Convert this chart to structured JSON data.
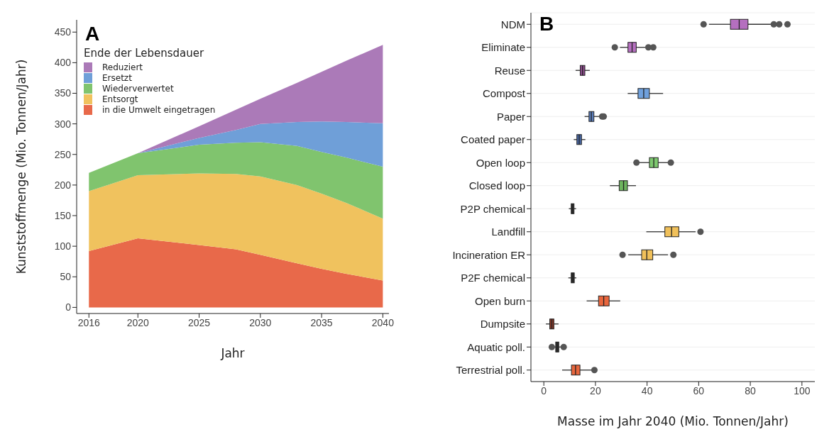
{
  "chart_data": [
    {
      "type": "area",
      "stacked": true,
      "annotations": [
        "A"
      ],
      "xlabel": "Jahr",
      "ylabel": "Kunststoffmenge (Mio. Tonnen/Jahr)",
      "legend_title": "Ende der Lebensdauer",
      "legend": "top left",
      "x": [
        2016,
        2020,
        2025,
        2028,
        2030,
        2033,
        2035,
        2037,
        2040
      ],
      "series": [
        {
          "name": "in die Umwelt eingetragen",
          "color": "#e8694a",
          "values": [
            92,
            113,
            102,
            95,
            86,
            72,
            63,
            55,
            44
          ]
        },
        {
          "name": "Entsorgt",
          "color": "#f0c25e",
          "values": [
            98,
            103,
            117,
            123,
            128,
            128,
            123,
            116,
            101
          ]
        },
        {
          "name": "Wiederverwertet",
          "color": "#80c46e",
          "values": [
            30,
            36,
            47,
            51,
            56,
            64,
            68,
            74,
            85
          ]
        },
        {
          "name": "Ersetzt",
          "color": "#6f9fd8",
          "values": [
            0,
            0,
            11,
            21,
            30,
            39,
            50,
            58,
            71
          ]
        },
        {
          "name": "Reduziert",
          "color": "#ab7ab8",
          "values": [
            0,
            0,
            19,
            33,
            41,
            64,
            81,
            100,
            128
          ]
        }
      ],
      "xlim": [
        2015,
        2040.5
      ],
      "xticks": [
        2016,
        2020,
        2025,
        2030,
        2035,
        2040
      ],
      "ylim": [
        -10,
        470
      ],
      "yticks": [
        0,
        50,
        100,
        150,
        200,
        250,
        300,
        350,
        400,
        450
      ]
    },
    {
      "type": "box",
      "orientation": "horizontal",
      "annotations": [
        "B"
      ],
      "xlabel": "Masse im Jahr 2040 (Mio. Tonnen/Jahr)",
      "grid": "y",
      "categories": [
        "NDM",
        "Eliminate",
        "Reuse",
        "Compost",
        "Paper",
        "Coated paper",
        "Open loop",
        "Closed loop",
        "P2P chemical",
        "Landfill",
        "Incineration ER",
        "P2F chemical",
        "Open burn",
        "Dumpsite",
        "Aquatic poll.",
        "Terrestrial poll."
      ],
      "boxes": [
        {
          "low": 64,
          "q1": 72.3,
          "median": 75.7,
          "q3": 79.1,
          "high": 88.3,
          "outliers": [
            61.9,
            89.1,
            91.2,
            94.4
          ]
        },
        {
          "low": 29.5,
          "q1": 32.6,
          "median": 34.2,
          "q3": 35.8,
          "high": 39.3,
          "outliers": [
            27.5,
            40.5,
            42.4
          ]
        },
        {
          "low": 12.3,
          "q1": 14.1,
          "median": 15,
          "q3": 15.9,
          "high": 17.8
        },
        {
          "low": 32.5,
          "q1": 36.5,
          "median": 38.7,
          "q3": 40.9,
          "high": 46.2
        },
        {
          "low": 15.8,
          "q1": 17.5,
          "median": 18.4,
          "q3": 19.4,
          "high": 21.8,
          "outliers": [
            22.6,
            23.2
          ]
        },
        {
          "low": 11.6,
          "q1": 12.8,
          "median": 13.7,
          "q3": 14.6,
          "high": 16.1
        },
        {
          "low": 36.5,
          "q1": 40.9,
          "median": 42.6,
          "q3": 44.3,
          "high": 48.5,
          "outliers": [
            35.9,
            49.2
          ]
        },
        {
          "low": 25.6,
          "q1": 29.2,
          "median": 30.9,
          "q3": 32.4,
          "high": 35.7
        },
        {
          "low": 9.7,
          "q1": 10.6,
          "median": 11.1,
          "q3": 11.7,
          "high": 12.5
        },
        {
          "low": 39.7,
          "q1": 46.9,
          "median": 49.5,
          "q3": 52.3,
          "high": 58.8,
          "outliers": [
            60.7
          ]
        },
        {
          "low": 32.7,
          "q1": 37.9,
          "median": 39.9,
          "q3": 42.2,
          "high": 48.1,
          "outliers": [
            30.5,
            50.2
          ]
        },
        {
          "low": 9.5,
          "q1": 10.6,
          "median": 11.2,
          "q3": 11.8,
          "high": 12.6
        },
        {
          "low": 16.6,
          "q1": 21.2,
          "median": 23.2,
          "q3": 25.3,
          "high": 29.6
        },
        {
          "low": 0.8,
          "q1": 2.3,
          "median": 3.1,
          "q3": 3.9,
          "high": 5.7
        },
        {
          "low": 3.4,
          "q1": 4.6,
          "median": 5.2,
          "q3": 5.8,
          "high": 7.1,
          "outliers": [
            3.1,
            7.7
          ]
        },
        {
          "low": 7.1,
          "q1": 10.7,
          "median": 12.3,
          "q3": 14,
          "high": 19,
          "outliers": [
            19.6
          ]
        }
      ],
      "colors": [
        "#b56fbf",
        "#b56fbf",
        "#8e4d8e",
        "#6fa0dc",
        "#5b7fbf",
        "#4a6aa8",
        "#7dc96f",
        "#6db35e",
        "#333333",
        "#f0c05a",
        "#f0c05a",
        "#333333",
        "#e8663d",
        "#8b3a2a",
        "#333333",
        "#e8663d"
      ],
      "xlim": [
        -5,
        105
      ],
      "xticks": [
        0,
        20,
        40,
        60,
        80,
        100
      ]
    }
  ]
}
